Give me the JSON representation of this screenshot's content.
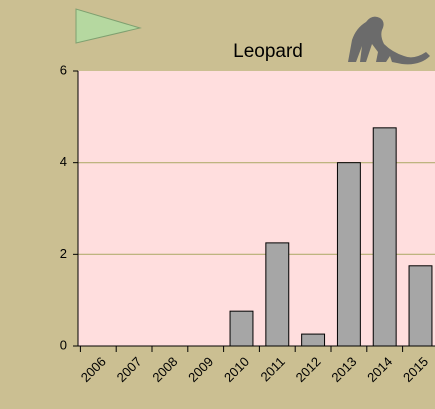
{
  "chart_data": {
    "type": "bar",
    "title": "Leopard",
    "categories": [
      "2006",
      "2007",
      "2008",
      "2009",
      "2010",
      "2011",
      "2012",
      "2013",
      "2014",
      "2015"
    ],
    "values": [
      0,
      0,
      0,
      0,
      0.76,
      2.25,
      0.26,
      4.0,
      4.76,
      1.75
    ],
    "color": "#a6a6a6",
    "ylim": [
      0,
      6
    ],
    "yticks": [
      0,
      2,
      4,
      6
    ],
    "grid": true
  }
}
